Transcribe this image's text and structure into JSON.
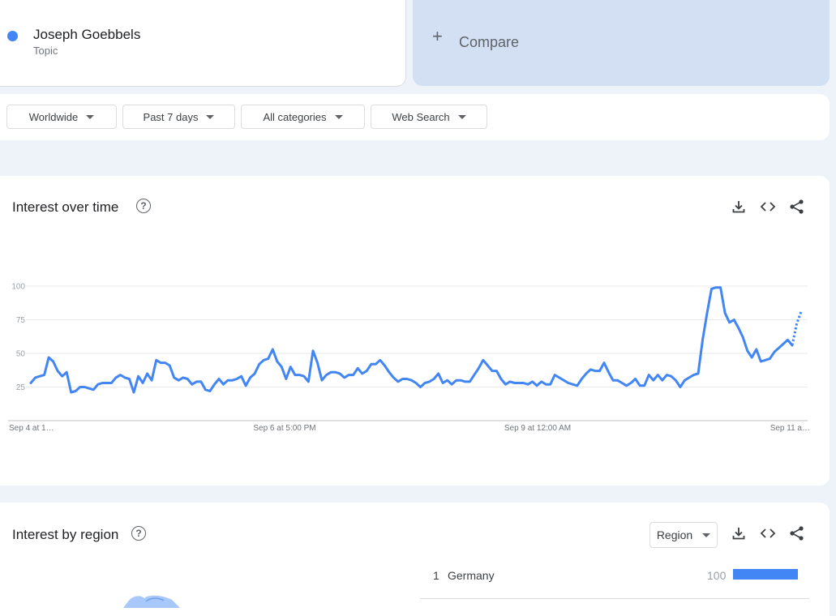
{
  "search_term": {
    "name": "Joseph Goebbels",
    "type": "Topic",
    "color": "#4285f4"
  },
  "compare": {
    "label": "Compare"
  },
  "filters": [
    {
      "label": "Worldwide"
    },
    {
      "label": "Past 7 days"
    },
    {
      "label": "All categories"
    },
    {
      "label": "Web Search"
    }
  ],
  "interest_over_time": {
    "title": "Interest over time",
    "help_icon": "question-circle-icon",
    "tools": [
      "download-icon",
      "embed-code-icon",
      "share-icon"
    ]
  },
  "interest_by_region": {
    "title": "Interest by region",
    "selector_label": "Region",
    "rows": [
      {
        "rank": "1",
        "name": "Germany",
        "value": "100",
        "fraction": 1.0
      }
    ]
  },
  "chart_data": {
    "type": "line",
    "title": "Interest over time",
    "xlabel": "",
    "ylabel": "",
    "ylim": [
      0,
      100
    ],
    "yticks": [
      25,
      50,
      75,
      100
    ],
    "x_tick_labels": [
      "Sep 4 at 1…",
      "Sep 6 at 5:00 PM",
      "Sep 9 at 12:00 AM",
      "Sep 11 a…"
    ],
    "grid": true,
    "line_color": "#4285f4",
    "series": [
      {
        "values": [
          28,
          32,
          33,
          34,
          47,
          44,
          37,
          33,
          36,
          21,
          22,
          25,
          25,
          24,
          23,
          27,
          28,
          28,
          28,
          32,
          34,
          32,
          31,
          21,
          33,
          28,
          35,
          30,
          45,
          43,
          43,
          41,
          32,
          30,
          32,
          31,
          27,
          29,
          29,
          23,
          22,
          27,
          31,
          27,
          30,
          30,
          31,
          33,
          26,
          32,
          35,
          42,
          45,
          46,
          53,
          44,
          40,
          31,
          40,
          34,
          34,
          33,
          29,
          52,
          43,
          30,
          34,
          36,
          36,
          35,
          32,
          34,
          34,
          39,
          35,
          37,
          42,
          42,
          45,
          41,
          36,
          32,
          29,
          31,
          31,
          30,
          28,
          25,
          28,
          29,
          31,
          35,
          28,
          30,
          27,
          30,
          30,
          29,
          29,
          34,
          39,
          45,
          41,
          37,
          37,
          31,
          27,
          29,
          28,
          28,
          28,
          27,
          29,
          26,
          29,
          27,
          27,
          34,
          32,
          30,
          28,
          27,
          26,
          31,
          35,
          38,
          37,
          37,
          43,
          36,
          30,
          30,
          28,
          26,
          28,
          31,
          26,
          26,
          34,
          30,
          34,
          30,
          34,
          33,
          30,
          25,
          30,
          32,
          34,
          35,
          60,
          80,
          98,
          99,
          99,
          80,
          73,
          75,
          69,
          62,
          52,
          47,
          53,
          44,
          45,
          46,
          51,
          54,
          57,
          60,
          56
        ],
        "partial_values": [
          56,
          72,
          81
        ]
      }
    ]
  }
}
